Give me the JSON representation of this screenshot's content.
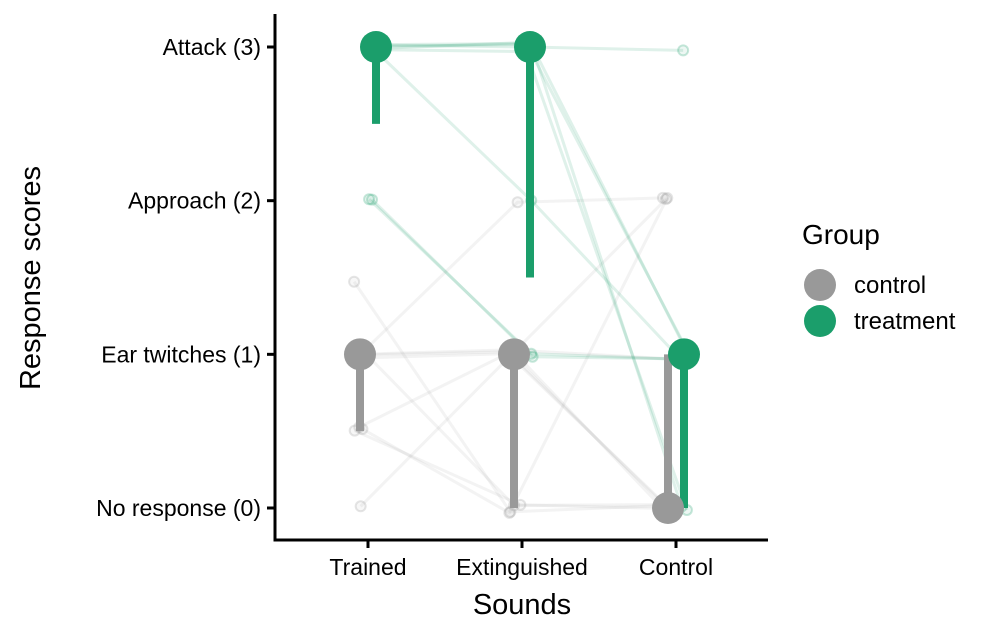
{
  "chart_data": {
    "type": "dot-range",
    "xlabel": "Sounds",
    "ylabel": "Response scores",
    "categories": [
      "Trained",
      "Extinguished",
      "Control"
    ],
    "yticks": [
      {
        "value": 3,
        "label": "Attack (3)"
      },
      {
        "value": 2,
        "label": "Approach (2)"
      },
      {
        "value": 1,
        "label": "Ear twitches (1)"
      },
      {
        "value": 0,
        "label": "No response (0)"
      }
    ],
    "ylim": [
      -0.2,
      3.2
    ],
    "grid": false,
    "legend": {
      "title": "Group",
      "position": "right"
    },
    "series": [
      {
        "name": "control",
        "color": "#999999",
        "median": [
          1,
          1,
          0
        ],
        "range_low": [
          0.5,
          0,
          0
        ],
        "range_high": [
          1,
          1,
          1
        ]
      },
      {
        "name": "treatment",
        "color": "#1b9e6b",
        "median": [
          3,
          3,
          1
        ],
        "range_low": [
          2.5,
          1.5,
          0
        ],
        "range_high": [
          3,
          3,
          1
        ]
      }
    ],
    "individuals": [
      {
        "group": "control",
        "values": [
          1,
          1,
          0
        ]
      },
      {
        "group": "control",
        "values": [
          1,
          1,
          0
        ]
      },
      {
        "group": "control",
        "values": [
          1,
          0,
          0
        ]
      },
      {
        "group": "control",
        "values": [
          1,
          1,
          1
        ]
      },
      {
        "group": "control",
        "values": [
          0.5,
          0,
          0
        ]
      },
      {
        "group": "control",
        "values": [
          0.5,
          0,
          2
        ]
      },
      {
        "group": "control",
        "values": [
          0,
          1,
          2
        ]
      },
      {
        "group": "control",
        "values": [
          1.5,
          0,
          0
        ]
      },
      {
        "group": "control",
        "values": [
          1,
          2,
          2
        ]
      },
      {
        "group": "control",
        "values": [
          0.5,
          1,
          0
        ]
      },
      {
        "group": "treatment",
        "values": [
          3,
          3,
          3
        ]
      },
      {
        "group": "treatment",
        "values": [
          3,
          3,
          1
        ]
      },
      {
        "group": "treatment",
        "values": [
          3,
          3,
          1
        ]
      },
      {
        "group": "treatment",
        "values": [
          3,
          3,
          0
        ]
      },
      {
        "group": "treatment",
        "values": [
          2,
          1,
          1
        ]
      },
      {
        "group": "treatment",
        "values": [
          2,
          1,
          1
        ]
      },
      {
        "group": "treatment",
        "values": [
          3,
          2,
          1
        ]
      },
      {
        "group": "treatment",
        "values": [
          3,
          3,
          0
        ]
      }
    ]
  }
}
